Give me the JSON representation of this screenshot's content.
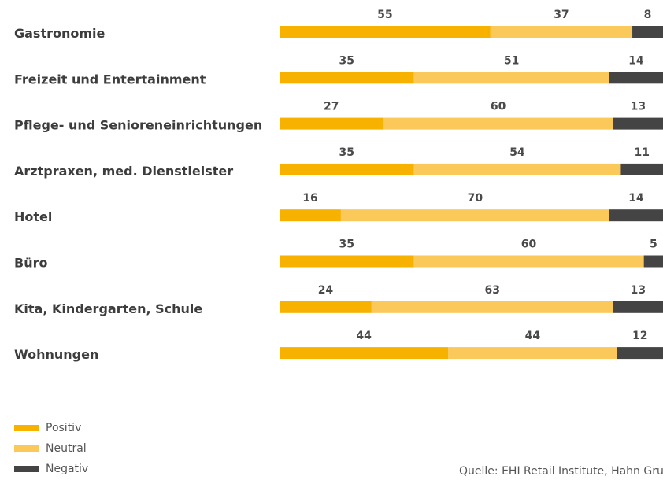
{
  "chart_data": {
    "type": "bar",
    "orientation": "horizontal",
    "stacked": true,
    "categories": [
      "Gastronomie",
      "Freizeit und Entertainment",
      "Pflege- und Senioreneinrichtungen",
      "Arztpraxen, med. Dienstleister",
      "Hotel",
      "Büro",
      "Kita, Kindergarten, Schule",
      "Wohnungen"
    ],
    "series": [
      {
        "name": "Positiv",
        "values": [
          55,
          35,
          27,
          35,
          16,
          35,
          24,
          44
        ],
        "color": "#f7b200"
      },
      {
        "name": "Neutral",
        "values": [
          37,
          51,
          60,
          54,
          70,
          60,
          63,
          44
        ],
        "color": "#fbc85a"
      },
      {
        "name": "Negativ",
        "values": [
          8,
          14,
          13,
          11,
          14,
          5,
          13,
          12
        ],
        "color": "#444444"
      }
    ],
    "xlim": [
      0,
      100
    ],
    "grid": false,
    "legend": "bottom-left"
  },
  "legend": {
    "items": [
      {
        "label": "Positiv",
        "color": "#f7b200"
      },
      {
        "label": "Neutral",
        "color": "#fbc85a"
      },
      {
        "label": "Negativ",
        "color": "#444444"
      }
    ]
  },
  "source": "Quelle: EHI Retail Institute, Hahn Gruppe"
}
